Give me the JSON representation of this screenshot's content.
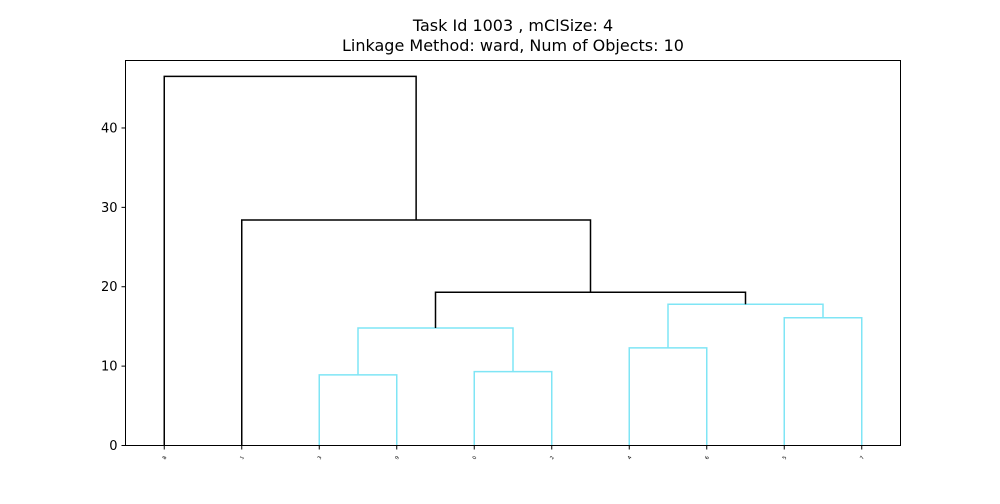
{
  "chart_data": {
    "type": "dendrogram",
    "title": "Task Id 1003 , mClSize: 4",
    "subtitle": "Linkage Method: ward, Num of Objects: 10",
    "xlabel": "",
    "ylabel": "",
    "ylim": [
      0,
      48.5
    ],
    "yticks": [
      0,
      10,
      20,
      30,
      40
    ],
    "grid": false,
    "leaves": [
      "8",
      "1",
      "3",
      "9",
      "0",
      "2",
      "4",
      "6",
      "5",
      "7"
    ],
    "merges": [
      {
        "left": "3",
        "right": "9",
        "height": 8.9,
        "color": "#7fe5f5"
      },
      {
        "left": "0",
        "right": "2",
        "height": 9.3,
        "color": "#7fe5f5"
      },
      {
        "left": "4",
        "right": "6",
        "height": 12.3,
        "color": "#7fe5f5"
      },
      {
        "left": "5",
        "right": "7",
        "height": 16.1,
        "color": "#7fe5f5"
      },
      {
        "left": "3,9",
        "right": "0,2",
        "height": 14.8,
        "color": "#7fe5f5"
      },
      {
        "left": "4,6",
        "right": "5,7",
        "height": 17.8,
        "color": "#7fe5f5"
      },
      {
        "left": "3,9,0,2",
        "right": "4,6,5,7",
        "height": 19.3,
        "color": "#000000"
      },
      {
        "left": "1",
        "right": "3,9,0,2,4,6,5,7",
        "height": 28.4,
        "color": "#000000"
      },
      {
        "left": "8",
        "right": "1,3,9,0,2,4,6,5,7",
        "height": 46.5,
        "color": "#000000"
      }
    ]
  }
}
